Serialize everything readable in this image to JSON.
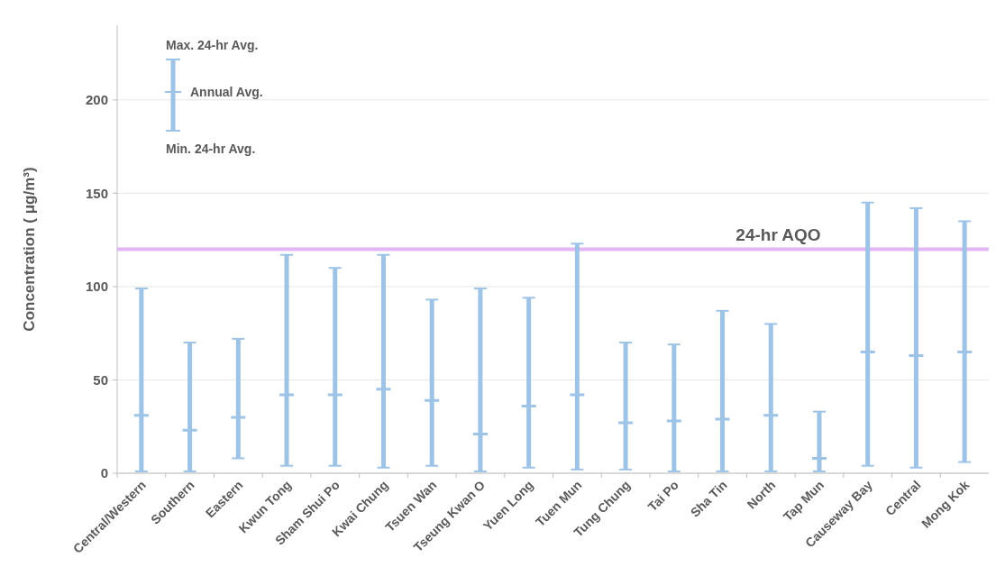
{
  "chart_data": {
    "type": "scatter",
    "ylabel": "Concentration ( μg/m³)",
    "categories": [
      "Central/Western",
      "Southern",
      "Eastern",
      "Kwun Tong",
      "Sham Shui Po",
      "Kwai Chung",
      "Tsuen Wan",
      "Tseung Kwan O",
      "Yuen Long",
      "Tuen Mun",
      "Tung Chung",
      "Tai Po",
      "Sha Tin",
      "North",
      "Tap Mun",
      "Causeway Bay",
      "Central",
      "Mong Kok"
    ],
    "series": [
      {
        "color": "#9dc3e6",
        "marker": "cross",
        "x": [
          "Central/Western",
          "Southern",
          "Eastern",
          "Kwun Tong",
          "Sham Shui Po",
          "Kwai Chung",
          "Tsuen Wan",
          "Tseung Kwan O",
          "Yuen Long",
          "Tuen Mun",
          "Tung Chung",
          "Tai Po",
          "Sha Tin",
          "North",
          "Tap Mun",
          "Causeway Bay",
          "Central",
          "Mong Kok"
        ],
        "values": [
          31,
          23,
          30,
          42,
          42,
          45,
          39,
          21,
          36,
          42,
          27,
          28,
          29,
          31,
          8,
          65,
          63,
          65
        ],
        "errors": [
          [
            1,
            99
          ],
          [
            1,
            70
          ],
          [
            8,
            72
          ],
          [
            4,
            117
          ],
          [
            4,
            110
          ],
          [
            3,
            117
          ],
          [
            4,
            93
          ],
          [
            1,
            99
          ],
          [
            3,
            94
          ],
          [
            2,
            123
          ],
          [
            2,
            70
          ],
          [
            1,
            69
          ],
          [
            1,
            87
          ],
          [
            1,
            80
          ],
          [
            1,
            33
          ],
          [
            4,
            145
          ],
          [
            3,
            142
          ],
          [
            6,
            135
          ]
        ]
      }
    ],
    "ylim": [
      0,
      240
    ],
    "yticks": [
      0,
      50,
      100,
      150,
      200
    ],
    "grid": "y",
    "ref_lines": [
      {
        "axis": "y",
        "value": 120,
        "label": "24-hr AQO",
        "color": "#e2b6f5"
      }
    ],
    "annotations": [
      "Max. 24-hr Avg.",
      "Annual Avg.",
      "Min. 24-hr Avg."
    ]
  }
}
